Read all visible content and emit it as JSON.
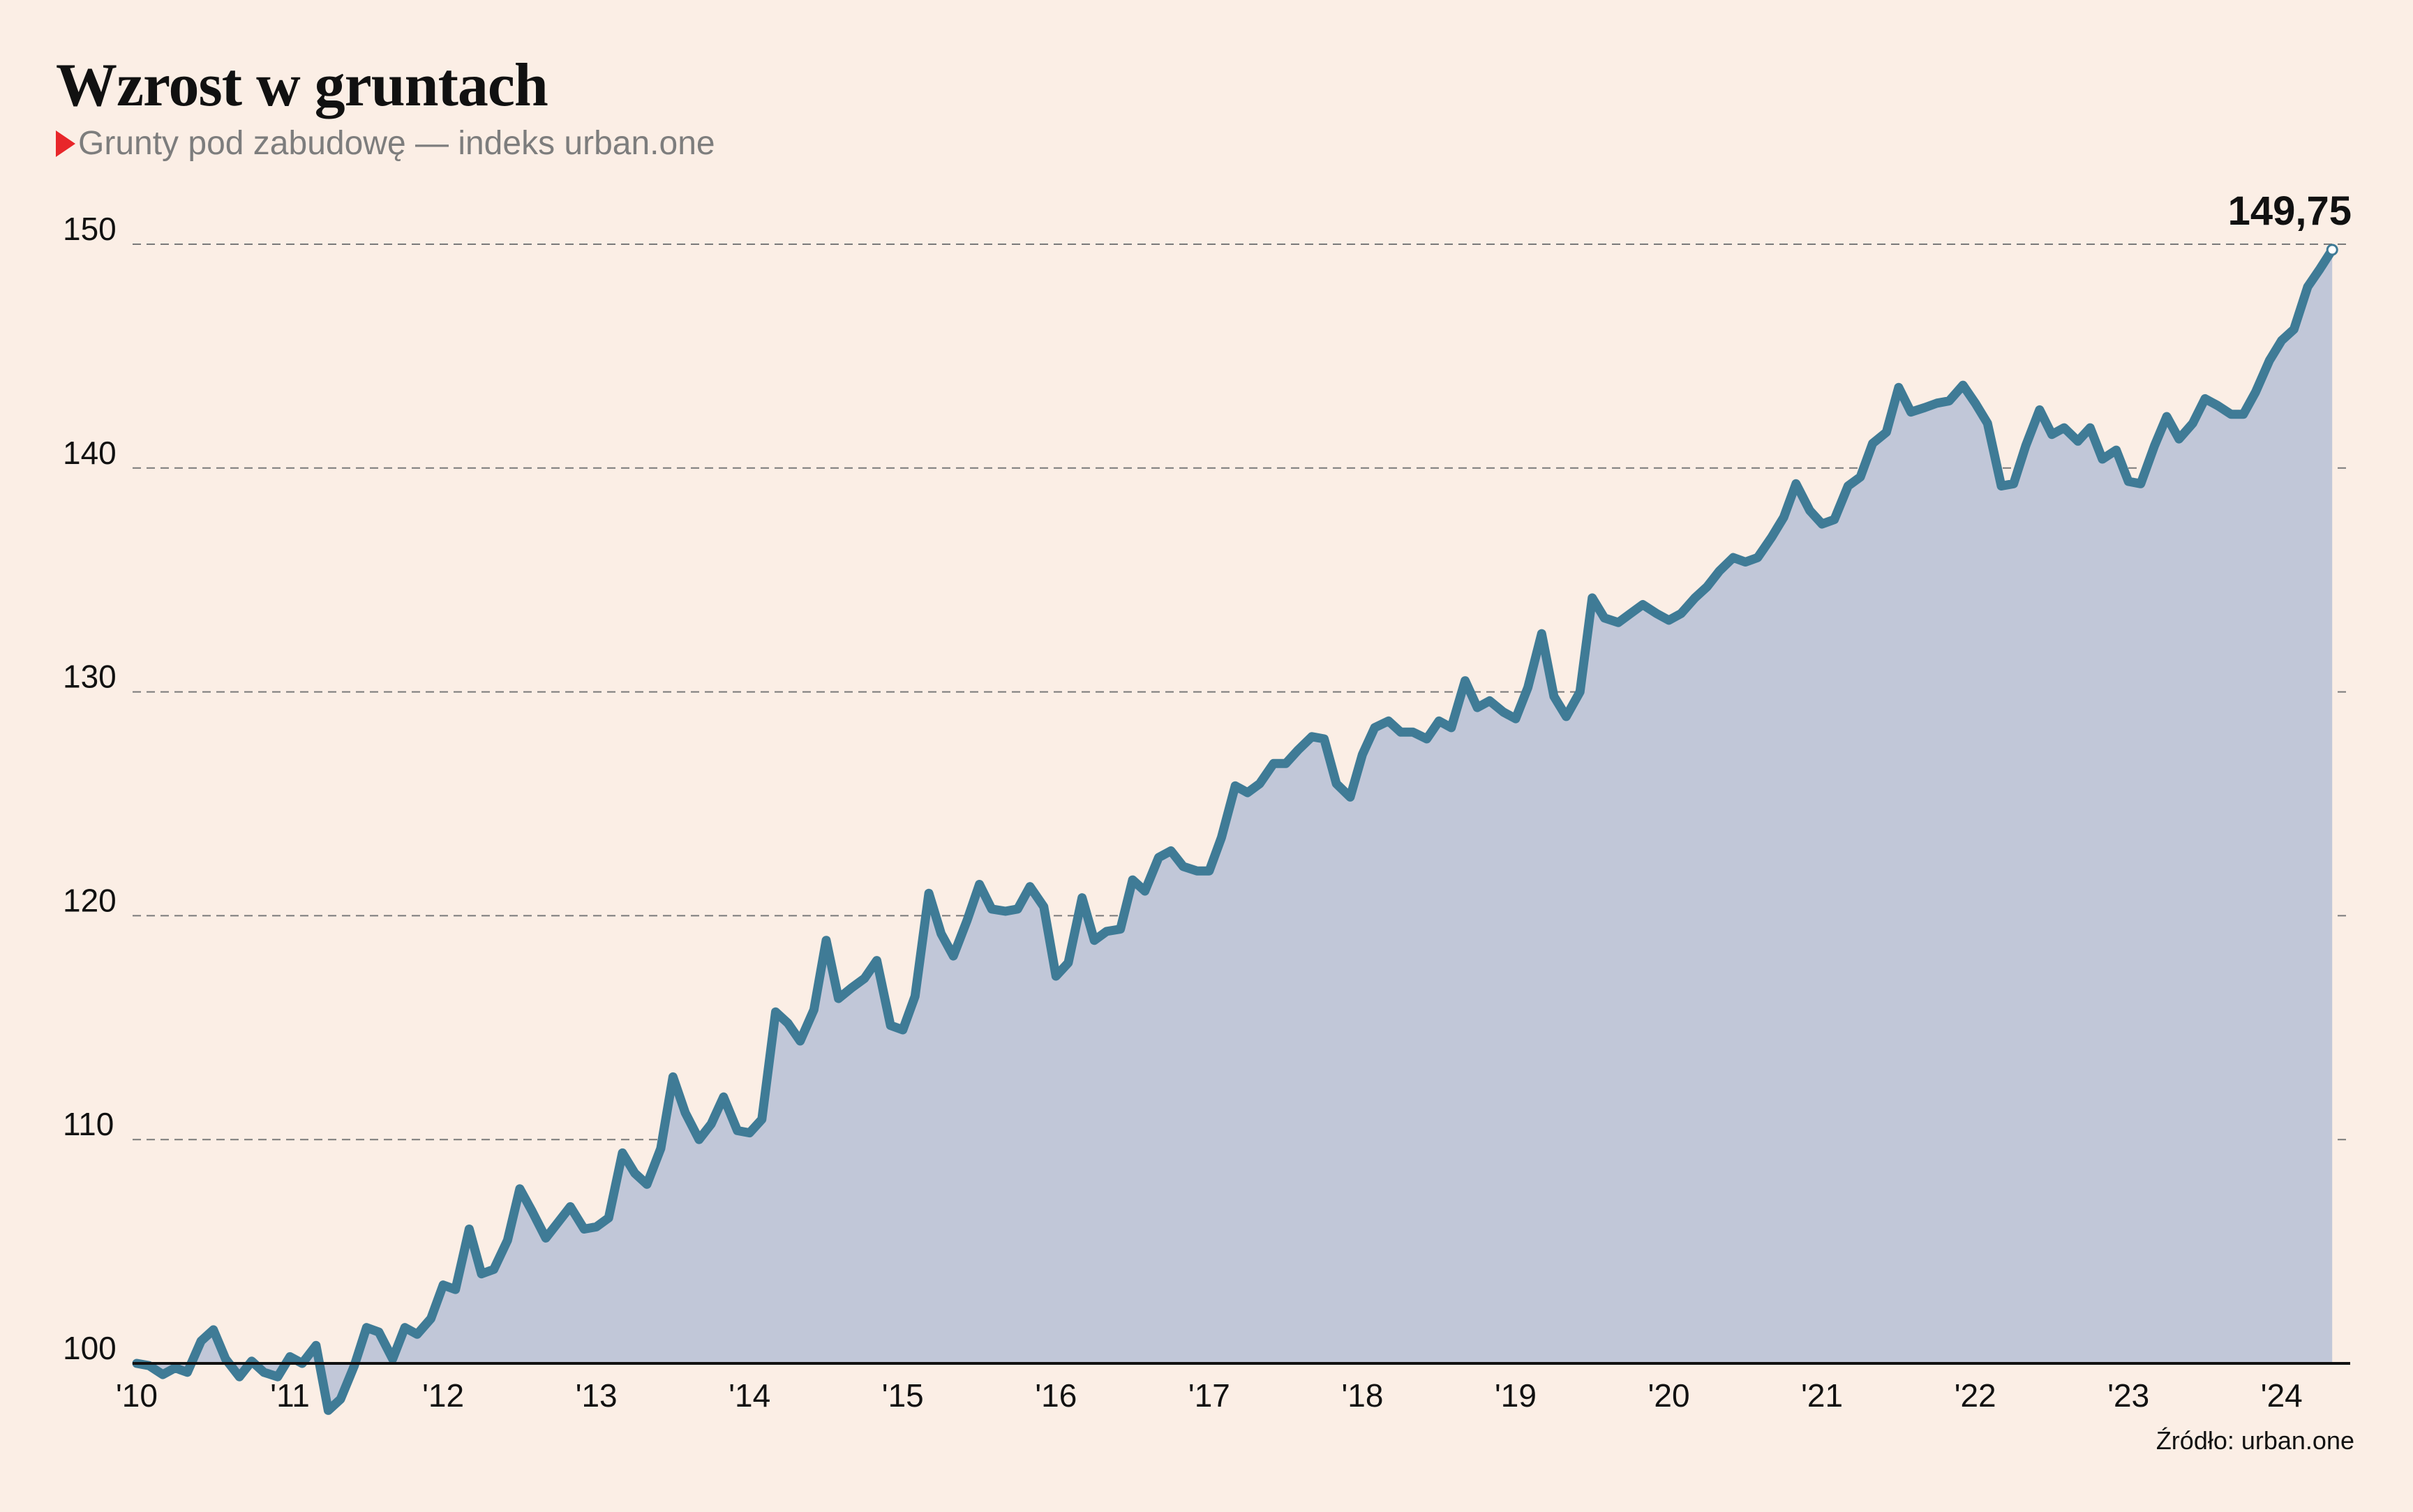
{
  "header": {
    "title": "Wzrost w gruntach",
    "subtitle": "Grunty pod zabudowę — indeks urban.one"
  },
  "footer": {
    "source": "Źródło: urban.one"
  },
  "colors": {
    "background": "#FBEEE5",
    "line": "#3F7B96",
    "area": "#C1C7D8",
    "marker": "#E8262A"
  },
  "chart_data": {
    "type": "area",
    "title": "Wzrost w gruntach",
    "subtitle": "Grunty pod zabudowę — indeks urban.one",
    "xlabel": "",
    "ylabel": "",
    "ylim": [
      100,
      150
    ],
    "xlim": [
      2010.0,
      2024.42
    ],
    "yticks": [
      100,
      110,
      120,
      130,
      140,
      150
    ],
    "xticks": [
      {
        "x": 2010,
        "label": "'10"
      },
      {
        "x": 2011,
        "label": "'11"
      },
      {
        "x": 2012,
        "label": "'12"
      },
      {
        "x": 2013,
        "label": "'13"
      },
      {
        "x": 2014,
        "label": "'14"
      },
      {
        "x": 2015,
        "label": "'15"
      },
      {
        "x": 2016,
        "label": "'16"
      },
      {
        "x": 2017,
        "label": "'17"
      },
      {
        "x": 2018,
        "label": "'18"
      },
      {
        "x": 2019,
        "label": "'19"
      },
      {
        "x": 2020,
        "label": "'20"
      },
      {
        "x": 2021,
        "label": "'21"
      },
      {
        "x": 2022,
        "label": "'22"
      },
      {
        "x": 2023,
        "label": "'23"
      },
      {
        "x": 2024,
        "label": "'24"
      }
    ],
    "grid": "horizontal dashed",
    "last_value_label": "149,75",
    "series": [
      {
        "values": [
          [
            2010.0,
            100.0
          ],
          [
            2010.08,
            99.9
          ],
          [
            2010.17,
            99.5
          ],
          [
            2010.25,
            99.8
          ],
          [
            2010.33,
            99.6
          ],
          [
            2010.42,
            101.0
          ],
          [
            2010.5,
            101.5
          ],
          [
            2010.58,
            100.2
          ],
          [
            2010.67,
            99.4
          ],
          [
            2010.75,
            100.1
          ],
          [
            2010.83,
            99.6
          ],
          [
            2010.92,
            99.4
          ],
          [
            2011.0,
            100.3
          ],
          [
            2011.08,
            100.0
          ],
          [
            2011.17,
            100.8
          ],
          [
            2011.25,
            97.9
          ],
          [
            2011.33,
            98.4
          ],
          [
            2011.42,
            99.9
          ],
          [
            2011.5,
            101.6
          ],
          [
            2011.58,
            101.4
          ],
          [
            2011.67,
            100.2
          ],
          [
            2011.75,
            101.6
          ],
          [
            2011.83,
            101.3
          ],
          [
            2011.92,
            102.0
          ],
          [
            2012.0,
            103.5
          ],
          [
            2012.08,
            103.3
          ],
          [
            2012.17,
            106.0
          ],
          [
            2012.25,
            104.0
          ],
          [
            2012.33,
            104.2
          ],
          [
            2012.42,
            105.5
          ],
          [
            2012.5,
            107.8
          ],
          [
            2012.58,
            106.8
          ],
          [
            2012.67,
            105.6
          ],
          [
            2012.75,
            106.3
          ],
          [
            2012.83,
            107.0
          ],
          [
            2012.92,
            106.0
          ],
          [
            2013.0,
            106.1
          ],
          [
            2013.08,
            106.5
          ],
          [
            2013.17,
            109.4
          ],
          [
            2013.25,
            108.5
          ],
          [
            2013.33,
            108.0
          ],
          [
            2013.42,
            109.6
          ],
          [
            2013.5,
            112.8
          ],
          [
            2013.58,
            111.2
          ],
          [
            2013.67,
            110.0
          ],
          [
            2013.75,
            110.7
          ],
          [
            2013.83,
            111.9
          ],
          [
            2013.92,
            110.4
          ],
          [
            2014.0,
            110.3
          ],
          [
            2014.08,
            110.9
          ],
          [
            2014.17,
            115.7
          ],
          [
            2014.25,
            115.2
          ],
          [
            2014.33,
            114.4
          ],
          [
            2014.42,
            115.8
          ],
          [
            2014.5,
            118.9
          ],
          [
            2014.58,
            116.3
          ],
          [
            2014.67,
            116.8
          ],
          [
            2014.75,
            117.2
          ],
          [
            2014.83,
            118.0
          ],
          [
            2014.92,
            115.1
          ],
          [
            2015.0,
            114.9
          ],
          [
            2015.08,
            116.4
          ],
          [
            2015.17,
            121.0
          ],
          [
            2015.25,
            119.2
          ],
          [
            2015.33,
            118.2
          ],
          [
            2015.42,
            119.8
          ],
          [
            2015.5,
            121.4
          ],
          [
            2015.58,
            120.3
          ],
          [
            2015.67,
            120.2
          ],
          [
            2015.75,
            120.3
          ],
          [
            2015.83,
            121.3
          ],
          [
            2015.92,
            120.4
          ],
          [
            2016.0,
            117.3
          ],
          [
            2016.08,
            117.9
          ],
          [
            2016.17,
            120.8
          ],
          [
            2016.25,
            118.9
          ],
          [
            2016.33,
            119.3
          ],
          [
            2016.42,
            119.4
          ],
          [
            2016.5,
            121.6
          ],
          [
            2016.58,
            121.1
          ],
          [
            2016.67,
            122.6
          ],
          [
            2016.75,
            122.9
          ],
          [
            2016.83,
            122.2
          ],
          [
            2016.92,
            122.0
          ],
          [
            2017.0,
            122.0
          ],
          [
            2017.08,
            123.5
          ],
          [
            2017.17,
            125.8
          ],
          [
            2017.25,
            125.5
          ],
          [
            2017.33,
            125.9
          ],
          [
            2017.42,
            126.8
          ],
          [
            2017.5,
            126.8
          ],
          [
            2017.58,
            127.4
          ],
          [
            2017.67,
            128.0
          ],
          [
            2017.75,
            127.9
          ],
          [
            2017.83,
            125.9
          ],
          [
            2017.92,
            125.3
          ],
          [
            2018.0,
            127.2
          ],
          [
            2018.08,
            128.4
          ],
          [
            2018.17,
            128.7
          ],
          [
            2018.25,
            128.2
          ],
          [
            2018.33,
            128.2
          ],
          [
            2018.42,
            127.9
          ],
          [
            2018.5,
            128.7
          ],
          [
            2018.58,
            128.4
          ],
          [
            2018.67,
            130.5
          ],
          [
            2018.75,
            129.3
          ],
          [
            2018.83,
            129.6
          ],
          [
            2018.92,
            129.1
          ],
          [
            2019.0,
            128.8
          ],
          [
            2019.08,
            130.2
          ],
          [
            2019.17,
            132.6
          ],
          [
            2019.25,
            129.8
          ],
          [
            2019.33,
            128.9
          ],
          [
            2019.42,
            130.0
          ],
          [
            2019.5,
            134.2
          ],
          [
            2019.58,
            133.3
          ],
          [
            2019.67,
            133.1
          ],
          [
            2019.75,
            133.5
          ],
          [
            2019.83,
            133.9
          ],
          [
            2019.92,
            133.5
          ],
          [
            2020.0,
            133.2
          ],
          [
            2020.08,
            133.5
          ],
          [
            2020.17,
            134.2
          ],
          [
            2020.25,
            134.7
          ],
          [
            2020.33,
            135.4
          ],
          [
            2020.42,
            136.0
          ],
          [
            2020.5,
            135.8
          ],
          [
            2020.58,
            136.0
          ],
          [
            2020.67,
            136.9
          ],
          [
            2020.75,
            137.8
          ],
          [
            2020.83,
            139.3
          ],
          [
            2020.92,
            138.1
          ],
          [
            2021.0,
            137.5
          ],
          [
            2021.08,
            137.7
          ],
          [
            2021.17,
            139.2
          ],
          [
            2021.25,
            139.6
          ],
          [
            2021.33,
            141.1
          ],
          [
            2021.42,
            141.6
          ],
          [
            2021.5,
            143.6
          ],
          [
            2021.58,
            142.5
          ],
          [
            2021.67,
            142.7
          ],
          [
            2021.75,
            142.9
          ],
          [
            2021.83,
            143.0
          ],
          [
            2021.92,
            143.7
          ],
          [
            2022.0,
            142.9
          ],
          [
            2022.08,
            142.0
          ],
          [
            2022.17,
            139.2
          ],
          [
            2022.25,
            139.3
          ],
          [
            2022.33,
            141.0
          ],
          [
            2022.42,
            142.6
          ],
          [
            2022.5,
            141.5
          ],
          [
            2022.58,
            141.8
          ],
          [
            2022.67,
            141.2
          ],
          [
            2022.75,
            141.8
          ],
          [
            2022.83,
            140.4
          ],
          [
            2022.92,
            140.8
          ],
          [
            2023.0,
            139.4
          ],
          [
            2023.08,
            139.3
          ],
          [
            2023.17,
            141.0
          ],
          [
            2023.25,
            142.3
          ],
          [
            2023.33,
            141.3
          ],
          [
            2023.42,
            142.0
          ],
          [
            2023.5,
            143.1
          ],
          [
            2023.58,
            142.8
          ],
          [
            2023.67,
            142.4
          ],
          [
            2023.75,
            142.4
          ],
          [
            2023.83,
            143.4
          ],
          [
            2023.92,
            144.8
          ],
          [
            2024.0,
            145.7
          ],
          [
            2024.08,
            146.2
          ],
          [
            2024.17,
            148.1
          ],
          [
            2024.25,
            148.9
          ],
          [
            2024.33,
            149.75
          ]
        ]
      }
    ]
  }
}
